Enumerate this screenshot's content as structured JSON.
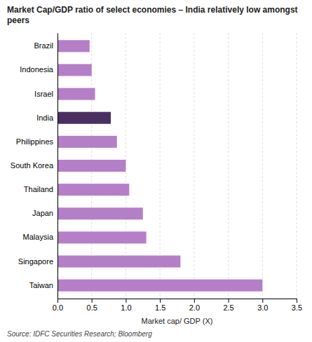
{
  "chart_data": {
    "type": "bar",
    "orientation": "horizontal",
    "title": "Market Cap/GDP ratio of select economies – India relatively low amongst peers",
    "categories": [
      "Brazil",
      "Indonesia",
      "Israel",
      "India",
      "Philippines",
      "South Korea",
      "Thailand",
      "Japan",
      "Malaysia",
      "Singapore",
      "Taiwan"
    ],
    "values": [
      0.47,
      0.5,
      0.55,
      0.78,
      0.87,
      1.0,
      1.05,
      1.25,
      1.3,
      1.8,
      3.0
    ],
    "colors": [
      "#b57fc8",
      "#b57fc8",
      "#b57fc8",
      "#4a3060",
      "#b57fc8",
      "#b57fc8",
      "#b57fc8",
      "#b57fc8",
      "#b57fc8",
      "#b57fc8",
      "#b57fc8"
    ],
    "x_label": "Market cap/ GDP (X)",
    "xlim": [
      0,
      3.5
    ],
    "xticks": [
      {
        "value": 0.0,
        "label": "0.0"
      },
      0.5,
      {
        "value": 1.0,
        "label": "1.0"
      },
      1.5,
      {
        "value": 2.0,
        "label": "2.0"
      },
      2.5,
      {
        "value": 3.0,
        "label": "3.0"
      },
      3.5
    ],
    "grid": true,
    "annotations": [
      "Source: IDFC Securities Research; Bloomberg"
    ]
  }
}
